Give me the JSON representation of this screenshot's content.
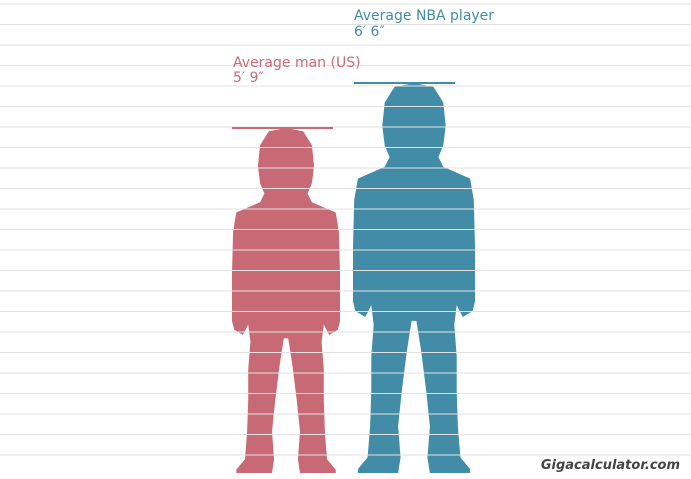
{
  "chart_data": {
    "type": "bar",
    "unit": "inches",
    "series": [
      {
        "name": "Average man (US)",
        "value_label": "5′ 9″",
        "value": 69,
        "color": "#c86a76"
      },
      {
        "name": "Average NBA player",
        "value_label": "6′ 6″",
        "value": 78,
        "color": "#428ca8"
      }
    ],
    "grid": true
  },
  "watermark": "Gigacalculator.com"
}
